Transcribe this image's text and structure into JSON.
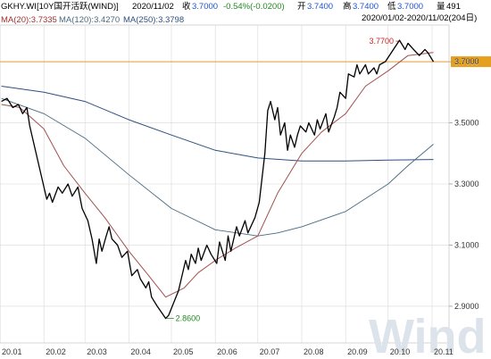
{
  "colors": {
    "price": "#000000",
    "ma20": "#a05050",
    "ma120": "#4a6a80",
    "ma250": "#2f4f7f",
    "current_line": "#e0a030",
    "current_box": "#e6a020",
    "grid": "#d8d8d8",
    "axis": "#999999",
    "title_bar": "#f4f4f4",
    "red_text": "#cc2222",
    "low_text": "#228822",
    "watermark": "#d8dee6"
  },
  "header": {
    "title": "GKHY.WI[10Y国开活跃(WIND)]",
    "date": "2020/11/02",
    "close_label": "收",
    "close_value": "3.7000",
    "change": "-0.54%(-0.0200)",
    "open_label": "开",
    "open_value": "3.7400",
    "high_label": "高",
    "high_value": "3.7400",
    "low_label": "低",
    "low_value": "3.7000",
    "volume_label": "量",
    "volume_value": "491",
    "ma20": "MA(20):3.7335",
    "ma120": "MA(120):3.4270",
    "ma250": "MA(250):3.3798",
    "range": "2020/01/02-2020/11/02(204日)"
  },
  "annotations": {
    "high_label": "3.7700",
    "low_label": "2.8600",
    "current_label": "3.7000"
  },
  "watermark": "Wind",
  "chart_data": {
    "type": "line",
    "title": "",
    "xlabel": "",
    "ylabel": "",
    "x_ticks": [
      "20.01",
      "20.02",
      "20.03",
      "20.04",
      "20.05",
      "20.06",
      "20.07",
      "20.08",
      "20.09",
      "20.10",
      "20.11"
    ],
    "y_ticks": [
      "2.9000",
      "3.1000",
      "3.3000",
      "3.5000",
      "3.7000"
    ],
    "ylim": [
      2.78,
      3.82
    ],
    "current_value": 3.7,
    "high": {
      "date": "2020-10-09",
      "value": 3.77
    },
    "low": {
      "date": "2020-04-27",
      "value": 2.86
    },
    "series": [
      {
        "name": "GKHY.WI",
        "key": "price",
        "points": [
          [
            "2020-01-02",
            3.57
          ],
          [
            "2020-01-06",
            3.58
          ],
          [
            "2020-01-10",
            3.55
          ],
          [
            "2020-01-14",
            3.56
          ],
          [
            "2020-01-17",
            3.53
          ],
          [
            "2020-01-20",
            3.55
          ],
          [
            "2020-01-22",
            3.49
          ],
          [
            "2020-02-03",
            3.25
          ],
          [
            "2020-02-05",
            3.27
          ],
          [
            "2020-02-07",
            3.24
          ],
          [
            "2020-02-11",
            3.29
          ],
          [
            "2020-02-14",
            3.27
          ],
          [
            "2020-02-18",
            3.3
          ],
          [
            "2020-02-21",
            3.26
          ],
          [
            "2020-02-25",
            3.29
          ],
          [
            "2020-02-28",
            3.22
          ],
          [
            "2020-03-03",
            3.18
          ],
          [
            "2020-03-06",
            3.12
          ],
          [
            "2020-03-09",
            3.04
          ],
          [
            "2020-03-11",
            3.12
          ],
          [
            "2020-03-13",
            3.08
          ],
          [
            "2020-03-16",
            3.13
          ],
          [
            "2020-03-18",
            3.16
          ],
          [
            "2020-03-20",
            3.12
          ],
          [
            "2020-03-24",
            3.1
          ],
          [
            "2020-03-27",
            3.06
          ],
          [
            "2020-03-31",
            3.08
          ],
          [
            "2020-04-03",
            3.0
          ],
          [
            "2020-04-07",
            3.02
          ],
          [
            "2020-04-09",
            2.99
          ],
          [
            "2020-04-13",
            2.96
          ],
          [
            "2020-04-15",
            2.98
          ],
          [
            "2020-04-17",
            2.93
          ],
          [
            "2020-04-21",
            2.9
          ],
          [
            "2020-04-24",
            2.88
          ],
          [
            "2020-04-27",
            2.86
          ],
          [
            "2020-04-29",
            2.87
          ],
          [
            "2020-05-06",
            2.95
          ],
          [
            "2020-05-08",
            2.99
          ],
          [
            "2020-05-11",
            3.05
          ],
          [
            "2020-05-13",
            3.02
          ],
          [
            "2020-05-15",
            3.07
          ],
          [
            "2020-05-18",
            3.04
          ],
          [
            "2020-05-20",
            3.09
          ],
          [
            "2020-05-22",
            3.05
          ],
          [
            "2020-05-26",
            3.1
          ],
          [
            "2020-05-29",
            3.07
          ],
          [
            "2020-06-02",
            3.04
          ],
          [
            "2020-06-04",
            3.11
          ],
          [
            "2020-06-08",
            3.05
          ],
          [
            "2020-06-10",
            3.13
          ],
          [
            "2020-06-12",
            3.08
          ],
          [
            "2020-06-16",
            3.16
          ],
          [
            "2020-06-18",
            3.13
          ],
          [
            "2020-06-22",
            3.18
          ],
          [
            "2020-06-24",
            3.14
          ],
          [
            "2020-06-29",
            3.19
          ],
          [
            "2020-07-02",
            3.24
          ],
          [
            "2020-07-06",
            3.4
          ],
          [
            "2020-07-08",
            3.54
          ],
          [
            "2020-07-10",
            3.57
          ],
          [
            "2020-07-13",
            3.51
          ],
          [
            "2020-07-15",
            3.55
          ],
          [
            "2020-07-17",
            3.46
          ],
          [
            "2020-07-20",
            3.5
          ],
          [
            "2020-07-22",
            3.41
          ],
          [
            "2020-07-24",
            3.46
          ],
          [
            "2020-07-27",
            3.42
          ],
          [
            "2020-07-29",
            3.46
          ],
          [
            "2020-07-31",
            3.49
          ],
          [
            "2020-08-04",
            3.47
          ],
          [
            "2020-08-06",
            3.5
          ],
          [
            "2020-08-10",
            3.46
          ],
          [
            "2020-08-12",
            3.51
          ],
          [
            "2020-08-14",
            3.48
          ],
          [
            "2020-08-18",
            3.53
          ],
          [
            "2020-08-20",
            3.47
          ],
          [
            "2020-08-24",
            3.52
          ],
          [
            "2020-08-26",
            3.55
          ],
          [
            "2020-08-28",
            3.6
          ],
          [
            "2020-09-01",
            3.58
          ],
          [
            "2020-09-03",
            3.66
          ],
          [
            "2020-09-07",
            3.65
          ],
          [
            "2020-09-09",
            3.69
          ],
          [
            "2020-09-11",
            3.66
          ],
          [
            "2020-09-15",
            3.69
          ],
          [
            "2020-09-17",
            3.66
          ],
          [
            "2020-09-21",
            3.68
          ],
          [
            "2020-09-23",
            3.66
          ],
          [
            "2020-09-25",
            3.69
          ],
          [
            "2020-09-29",
            3.7
          ],
          [
            "2020-10-09",
            3.77
          ],
          [
            "2020-10-13",
            3.74
          ],
          [
            "2020-10-15",
            3.76
          ],
          [
            "2020-10-19",
            3.74
          ],
          [
            "2020-10-21",
            3.73
          ],
          [
            "2020-10-23",
            3.72
          ],
          [
            "2020-10-27",
            3.74
          ],
          [
            "2020-10-29",
            3.73
          ],
          [
            "2020-11-02",
            3.7
          ]
        ]
      },
      {
        "name": "MA(20)",
        "key": "ma20",
        "points": [
          [
            "2020-01-02",
            3.56
          ],
          [
            "2020-01-15",
            3.55
          ],
          [
            "2020-02-01",
            3.48
          ],
          [
            "2020-02-15",
            3.36
          ],
          [
            "2020-03-01",
            3.27
          ],
          [
            "2020-03-15",
            3.19
          ],
          [
            "2020-04-01",
            3.08
          ],
          [
            "2020-04-15",
            3.0
          ],
          [
            "2020-04-27",
            2.93
          ],
          [
            "2020-05-10",
            2.96
          ],
          [
            "2020-05-20",
            3.01
          ],
          [
            "2020-06-01",
            3.05
          ],
          [
            "2020-06-15",
            3.09
          ],
          [
            "2020-07-01",
            3.13
          ],
          [
            "2020-07-15",
            3.27
          ],
          [
            "2020-08-01",
            3.4
          ],
          [
            "2020-08-15",
            3.47
          ],
          [
            "2020-09-01",
            3.53
          ],
          [
            "2020-09-15",
            3.62
          ],
          [
            "2020-10-01",
            3.67
          ],
          [
            "2020-10-15",
            3.72
          ],
          [
            "2020-11-02",
            3.73
          ]
        ]
      },
      {
        "name": "MA(120)",
        "key": "ma120",
        "points": [
          [
            "2020-01-02",
            3.58
          ],
          [
            "2020-02-01",
            3.53
          ],
          [
            "2020-03-01",
            3.45
          ],
          [
            "2020-04-01",
            3.33
          ],
          [
            "2020-05-01",
            3.22
          ],
          [
            "2020-06-01",
            3.15
          ],
          [
            "2020-07-01",
            3.13
          ],
          [
            "2020-07-15",
            3.14
          ],
          [
            "2020-08-01",
            3.16
          ],
          [
            "2020-09-01",
            3.21
          ],
          [
            "2020-10-01",
            3.3
          ],
          [
            "2020-10-15",
            3.36
          ],
          [
            "2020-11-02",
            3.43
          ]
        ]
      },
      {
        "name": "MA(250)",
        "key": "ma250",
        "points": [
          [
            "2020-01-02",
            3.62
          ],
          [
            "2020-02-01",
            3.6
          ],
          [
            "2020-03-01",
            3.57
          ],
          [
            "2020-04-01",
            3.51
          ],
          [
            "2020-05-01",
            3.46
          ],
          [
            "2020-06-01",
            3.41
          ],
          [
            "2020-07-01",
            3.385
          ],
          [
            "2020-08-01",
            3.375
          ],
          [
            "2020-09-01",
            3.375
          ],
          [
            "2020-10-01",
            3.378
          ],
          [
            "2020-11-02",
            3.38
          ]
        ]
      }
    ]
  }
}
